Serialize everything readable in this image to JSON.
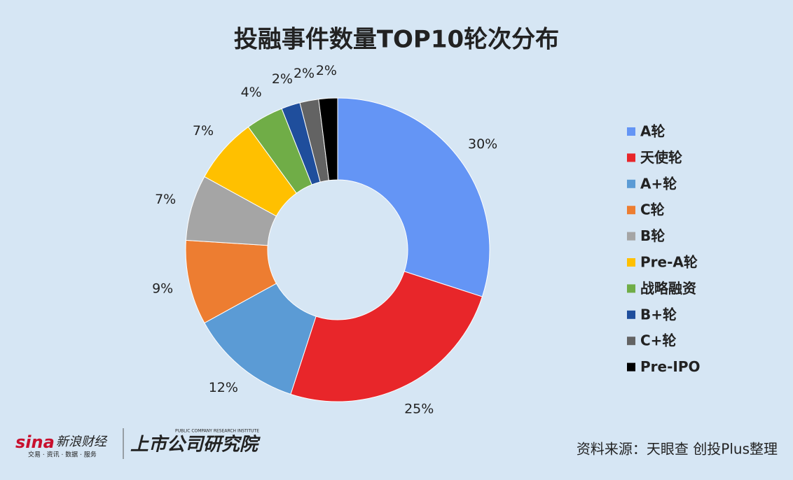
{
  "chart_data": {
    "type": "donut",
    "title": "投融事件数量TOP10轮次分布",
    "categories": [
      "A轮",
      "天使轮",
      "A+轮",
      "C轮",
      "B轮",
      "Pre-A轮",
      "战略融资",
      "B+轮",
      "C+轮",
      "Pre-IPO"
    ],
    "values": [
      30,
      25,
      12,
      9,
      7,
      7,
      4,
      2,
      2,
      2
    ],
    "value_labels": [
      "30%",
      "25%",
      "12%",
      "9%",
      "7%",
      "7%",
      "4%",
      "2%",
      "2%",
      "2%"
    ],
    "colors": [
      "#6495f5",
      "#e8262a",
      "#5b9bd5",
      "#ed7d31",
      "#a5a5a5",
      "#ffc000",
      "#70ad47",
      "#1f4e9c",
      "#636363",
      "#000000"
    ],
    "legend": "right"
  },
  "footer": {
    "brand": "sina",
    "brand_name": "新浪财经",
    "brand_slogan": "交易 · 资讯 · 数据 · 服务",
    "institute": "上市公司研究院",
    "institute_en": "PUBLIC COMPANY RESEARCH INSTITUTE",
    "source": "资料来源：天眼查 创投Plus整理"
  }
}
